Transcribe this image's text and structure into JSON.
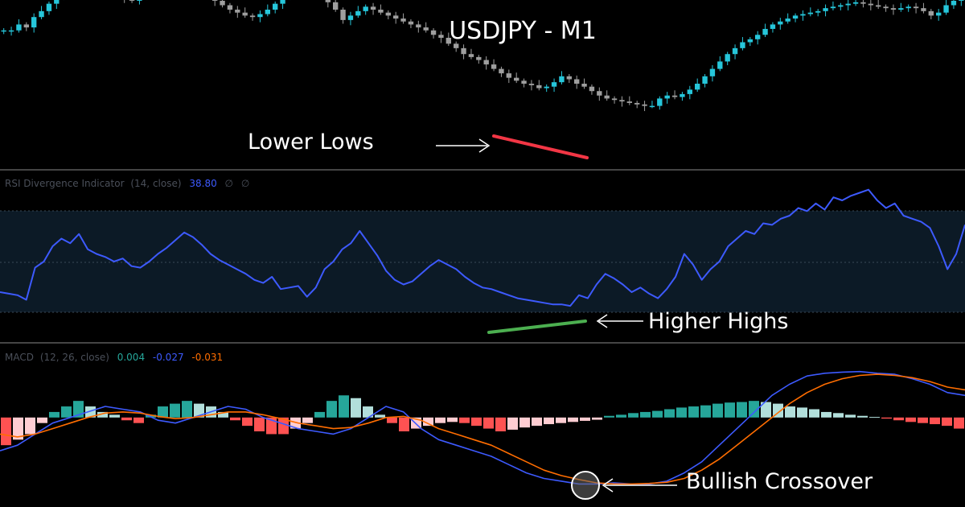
{
  "chart_data": [
    {
      "type": "candlestick",
      "title": "USDJPY - M1",
      "colors": {
        "up": "#26c6da",
        "down": "#9e9e9e"
      },
      "y_scale": [
        100,
        0
      ],
      "close": [
        86,
        86,
        90,
        88,
        95,
        99,
        104,
        108,
        112,
        118,
        115,
        112,
        115,
        112,
        111,
        110,
        108,
        106,
        110,
        113,
        116,
        118,
        119,
        118,
        117,
        115,
        113,
        110,
        106,
        103,
        100,
        98,
        96,
        95,
        97,
        100,
        104,
        108,
        112,
        115,
        117,
        118,
        112,
        105,
        100,
        93,
        96,
        99,
        102,
        100,
        98,
        96,
        94,
        92,
        90,
        88,
        86,
        83,
        81,
        77,
        74,
        70,
        68,
        66,
        63,
        60,
        57,
        54,
        52,
        50,
        49,
        47,
        48,
        51,
        55,
        53,
        50,
        48,
        45,
        42,
        40,
        39,
        38,
        37,
        36,
        35,
        35,
        40,
        42,
        41,
        43,
        46,
        50,
        55,
        60,
        65,
        70,
        74,
        78,
        80,
        83,
        87,
        90,
        92,
        94,
        96,
        97,
        98,
        99,
        101,
        102,
        103,
        104,
        105,
        104,
        103,
        102,
        101,
        100,
        101,
        102,
        101,
        99,
        96,
        98,
        103,
        106,
        108
      ],
      "annotations": [
        "Lower Lows"
      ]
    },
    {
      "type": "line",
      "indicator": {
        "name": "RSI Divergence Indicator",
        "params": "(14, close)",
        "value": "38.80",
        "extras": [
          "∅",
          "∅"
        ]
      },
      "ylim": [
        0,
        100
      ],
      "levels": [
        70,
        50,
        30
      ],
      "series": [
        {
          "color": "#3d5afe",
          "values": [
            30,
            29,
            28,
            25,
            46,
            50,
            60,
            65,
            62,
            68,
            58,
            55,
            53,
            50,
            52,
            47,
            46,
            50,
            55,
            59,
            64,
            69,
            66,
            61,
            55,
            51,
            48,
            45,
            42,
            38,
            36,
            40,
            32,
            33,
            34,
            27,
            33,
            45,
            50,
            58,
            62,
            70,
            62,
            54,
            44,
            38,
            35,
            37,
            42,
            47,
            51,
            48,
            45,
            40,
            36,
            33,
            32,
            30,
            28,
            26,
            25,
            24,
            23,
            22,
            22,
            21,
            28,
            26,
            35,
            42,
            39,
            35,
            30,
            33,
            29,
            26,
            32,
            40,
            55,
            48,
            38,
            45,
            50,
            60,
            65,
            70,
            68,
            75,
            74,
            78,
            80,
            85,
            83,
            88,
            84,
            92,
            90,
            93,
            95,
            97,
            90,
            85,
            88,
            80,
            78,
            76,
            72,
            60,
            45,
            55,
            74
          ]
        }
      ],
      "annotations": [
        "Higher Highs"
      ]
    },
    {
      "type": "macd",
      "indicator": {
        "name": "MACD",
        "params": "(12, 26, close)",
        "values": [
          "0.004",
          "-0.027",
          "-0.031"
        ]
      },
      "value_colors": [
        "#26a69a",
        "#3d5afe",
        "#ff6d00"
      ],
      "ylim": [
        -1.5,
        1.0
      ],
      "histogram": [
        -0.5,
        -0.4,
        -0.3,
        -0.1,
        0.1,
        0.2,
        0.3,
        0.2,
        0.1,
        0.05,
        -0.05,
        -0.1,
        0.05,
        0.2,
        0.25,
        0.3,
        0.25,
        0.2,
        0.1,
        -0.05,
        -0.15,
        -0.25,
        -0.3,
        -0.3,
        -0.2,
        -0.1,
        0.1,
        0.3,
        0.4,
        0.35,
        0.2,
        0.05,
        -0.1,
        -0.25,
        -0.2,
        -0.15,
        -0.1,
        -0.08,
        -0.1,
        -0.15,
        -0.2,
        -0.25,
        -0.22,
        -0.18,
        -0.15,
        -0.12,
        -0.1,
        -0.08,
        -0.06,
        -0.04,
        0.03,
        0.05,
        0.08,
        0.1,
        0.12,
        0.15,
        0.18,
        0.2,
        0.22,
        0.25,
        0.27,
        0.28,
        0.3,
        0.28,
        0.25,
        0.2,
        0.18,
        0.15,
        0.1,
        0.08,
        0.05,
        0.03,
        0.01,
        -0.02,
        -0.05,
        -0.08,
        -0.1,
        -0.12,
        -0.15,
        -0.2
      ],
      "series": [
        {
          "color": "#3d5afe",
          "values": [
            -0.6,
            -0.5,
            -0.3,
            -0.1,
            0.0,
            0.1,
            0.2,
            0.15,
            0.1,
            -0.05,
            -0.1,
            0.0,
            0.1,
            0.2,
            0.15,
            0.0,
            -0.1,
            -0.2,
            -0.25,
            -0.3,
            -0.2,
            0.0,
            0.2,
            0.1,
            -0.2,
            -0.4,
            -0.5,
            -0.6,
            -0.7,
            -0.85,
            -1.0,
            -1.1,
            -1.15,
            -1.2,
            -1.2,
            -1.18,
            -1.2,
            -1.2,
            -1.15,
            -1.0,
            -0.8,
            -0.5,
            -0.2,
            0.1,
            0.4,
            0.6,
            0.75,
            0.8,
            0.82,
            0.83,
            0.8,
            0.78,
            0.7,
            0.6,
            0.45,
            0.4
          ]
        },
        {
          "color": "#ff6d00",
          "values": [
            -0.3,
            -0.35,
            -0.3,
            -0.2,
            -0.1,
            0.0,
            0.08,
            0.1,
            0.08,
            0.02,
            -0.02,
            0.0,
            0.05,
            0.1,
            0.1,
            0.05,
            -0.02,
            -0.1,
            -0.15,
            -0.2,
            -0.18,
            -0.1,
            0.0,
            0.02,
            -0.05,
            -0.2,
            -0.3,
            -0.4,
            -0.5,
            -0.65,
            -0.8,
            -0.95,
            -1.05,
            -1.12,
            -1.18,
            -1.2,
            -1.2,
            -1.19,
            -1.17,
            -1.1,
            -0.95,
            -0.75,
            -0.5,
            -0.25,
            0.0,
            0.25,
            0.45,
            0.6,
            0.7,
            0.76,
            0.78,
            0.76,
            0.72,
            0.65,
            0.55,
            0.5
          ]
        }
      ],
      "annotations": [
        "Bullish Crossover"
      ]
    }
  ]
}
